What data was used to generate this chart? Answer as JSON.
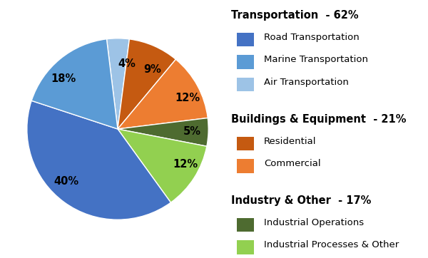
{
  "slices": [
    {
      "label": "Air Transportation",
      "pct": 4,
      "color": "#9DC3E6"
    },
    {
      "label": "Residential",
      "pct": 9,
      "color": "#C55A11"
    },
    {
      "label": "Commercial",
      "pct": 12,
      "color": "#ED7D31"
    },
    {
      "label": "Industrial Operations",
      "pct": 5,
      "color": "#4E6B30"
    },
    {
      "label": "Industrial Processes & Other",
      "pct": 12,
      "color": "#92D050"
    },
    {
      "label": "Road Transportation",
      "pct": 40,
      "color": "#4472C4"
    },
    {
      "label": "Marine Transportation",
      "pct": 18,
      "color": "#5B9BD5"
    }
  ],
  "legend_groups": [
    {
      "header": "Transportation  - 62%",
      "items": [
        {
          "label": "Road Transportation",
          "color": "#4472C4"
        },
        {
          "label": "Marine Transportation",
          "color": "#5B9BD5"
        },
        {
          "label": "Air Transportation",
          "color": "#9DC3E6"
        }
      ]
    },
    {
      "header": "Buildings & Equipment  - 21%",
      "items": [
        {
          "label": "Residential",
          "color": "#C55A11"
        },
        {
          "label": "Commercial",
          "color": "#ED7D31"
        }
      ]
    },
    {
      "header": "Industry & Other  - 17%",
      "items": [
        {
          "label": "Industrial Operations",
          "color": "#4E6B30"
        },
        {
          "label": "Industrial Processes & Other",
          "color": "#92D050"
        }
      ]
    }
  ],
  "background_color": "#FFFFFF",
  "label_fontsize": 10.5,
  "legend_header_fontsize": 10.5,
  "legend_item_fontsize": 9.5,
  "startangle": 97
}
